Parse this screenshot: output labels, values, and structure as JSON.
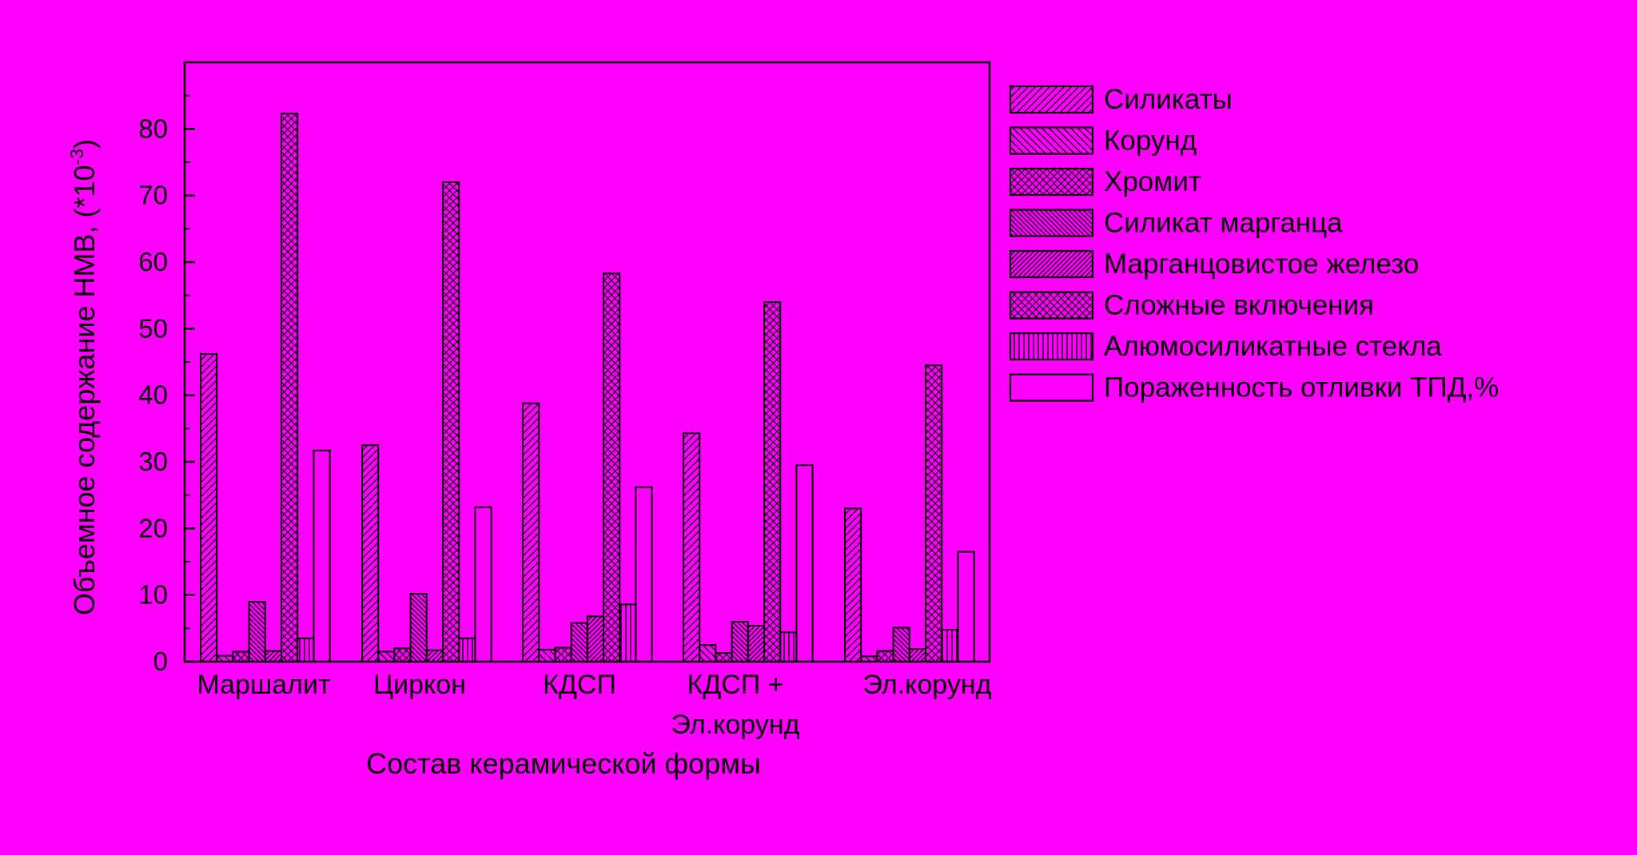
{
  "chart_data": {
    "type": "bar",
    "title": "",
    "xlabel": "Состав керамической формы",
    "ylabel": "Объемное содержание НМВ, (*10",
    "ylabel_superscript": "-3",
    "ylabel_suffix": ")",
    "ylim": [
      0,
      90
    ],
    "yticks": [
      0,
      10,
      20,
      30,
      40,
      50,
      60,
      70,
      80
    ],
    "grid": false,
    "legend_position": "right",
    "categories": [
      [
        "Маршалит"
      ],
      [
        "Циркон"
      ],
      [
        "КДСП"
      ],
      [
        "КДСП +",
        "Эл.корунд"
      ],
      [
        "Эл.корунд"
      ]
    ],
    "series": [
      {
        "name": "Силикаты",
        "pattern": "diag-right",
        "values": [
          46.2,
          32.5,
          38.8,
          34.3,
          23.0
        ]
      },
      {
        "name": "Корунд",
        "pattern": "diag-left",
        "values": [
          0.9,
          1.5,
          1.8,
          2.5,
          0.8
        ]
      },
      {
        "name": "Хромит",
        "pattern": "cross",
        "values": [
          1.5,
          2.0,
          2.1,
          1.3,
          1.6
        ]
      },
      {
        "name": "Силикат марганца",
        "pattern": "diag-left-dense",
        "values": [
          9.0,
          10.2,
          5.8,
          6.0,
          5.1
        ]
      },
      {
        "name": "Марганцовистое железо",
        "pattern": "diag-right-dense",
        "values": [
          1.6,
          1.7,
          6.8,
          5.4,
          1.9
        ]
      },
      {
        "name": "Сложные включения",
        "pattern": "cross",
        "values": [
          82.3,
          72.0,
          58.3,
          54.0,
          44.5
        ]
      },
      {
        "name": "Алюмосиликатные стекла",
        "pattern": "vertical",
        "values": [
          3.5,
          3.5,
          8.6,
          4.4,
          4.8
        ]
      },
      {
        "name": "Пораженность отливки ТПД,%",
        "pattern": "none",
        "values": [
          31.7,
          23.2,
          26.2,
          29.5,
          16.5
        ]
      }
    ],
    "colors": {
      "background": "#ff00ff",
      "ink": "#000000"
    }
  }
}
